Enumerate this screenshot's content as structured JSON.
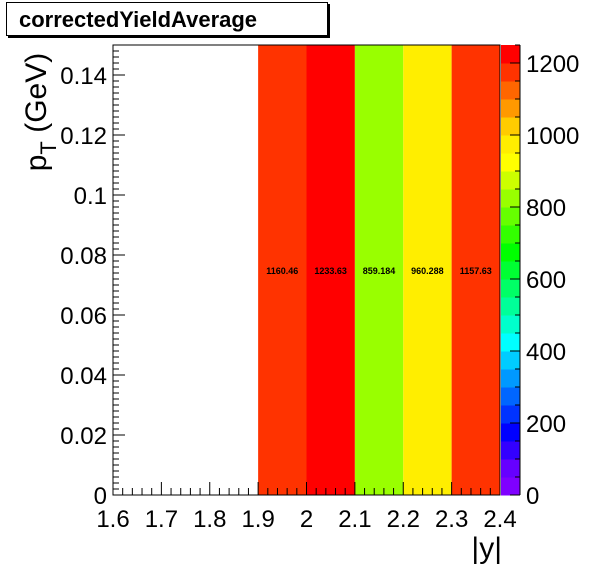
{
  "chart_data": {
    "type": "heatmap",
    "title": "correctedYieldAverage",
    "xlabel": "|y|",
    "ylabel_main": "p",
    "ylabel_sub": "T",
    "ylabel_unit": " (GeV)",
    "xlim": [
      1.6,
      2.4
    ],
    "ylim": [
      0,
      0.15
    ],
    "zlim": [
      0,
      1250
    ],
    "x_ticks": [
      "1.6",
      "1.7",
      "1.8",
      "1.9",
      "2",
      "2.1",
      "2.2",
      "2.3",
      "2.4"
    ],
    "x_tick_values": [
      1.6,
      1.7,
      1.8,
      1.9,
      2.0,
      2.1,
      2.2,
      2.3,
      2.4
    ],
    "y_ticks": [
      "0",
      "0.02",
      "0.04",
      "0.06",
      "0.08",
      "0.1",
      "0.12",
      "0.14"
    ],
    "y_tick_values": [
      0,
      0.02,
      0.04,
      0.06,
      0.08,
      0.1,
      0.12,
      0.14
    ],
    "z_ticks": [
      "0",
      "200",
      "400",
      "600",
      "800",
      "1000",
      "1200"
    ],
    "z_tick_values": [
      0,
      200,
      400,
      600,
      800,
      1000,
      1200
    ],
    "cells": [
      {
        "x0": 1.9,
        "x1": 2.0,
        "y0": 0,
        "y1": 0.15,
        "value": 1160.46,
        "label": "1160.46",
        "color": "#ff3300"
      },
      {
        "x0": 2.0,
        "x1": 2.1,
        "y0": 0,
        "y1": 0.15,
        "value": 1233.63,
        "label": "1233.63",
        "color": "#ff0000"
      },
      {
        "x0": 2.1,
        "x1": 2.2,
        "y0": 0,
        "y1": 0.15,
        "value": 859.184,
        "label": "859.184",
        "color": "#99ff00"
      },
      {
        "x0": 2.2,
        "x1": 2.3,
        "y0": 0,
        "y1": 0.15,
        "value": 960.288,
        "label": "960.288",
        "color": "#ffee00"
      },
      {
        "x0": 2.3,
        "x1": 2.4,
        "y0": 0,
        "y1": 0.15,
        "value": 1157.63,
        "label": "1157.63",
        "color": "#ff3300"
      }
    ],
    "palette": [
      "#7f00ff",
      "#6600ff",
      "#3300ff",
      "#0000ff",
      "#0033ff",
      "#0066ff",
      "#0099ff",
      "#00ccff",
      "#00ffff",
      "#00ffcc",
      "#00ff99",
      "#00ff66",
      "#00ff33",
      "#00ff00",
      "#33ff00",
      "#66ff00",
      "#99ff00",
      "#ccff00",
      "#ffff00",
      "#ffee00",
      "#ffcc00",
      "#ff9900",
      "#ff6600",
      "#ff3300",
      "#ff0000"
    ],
    "grid": false,
    "legend": "colorbar-right"
  }
}
